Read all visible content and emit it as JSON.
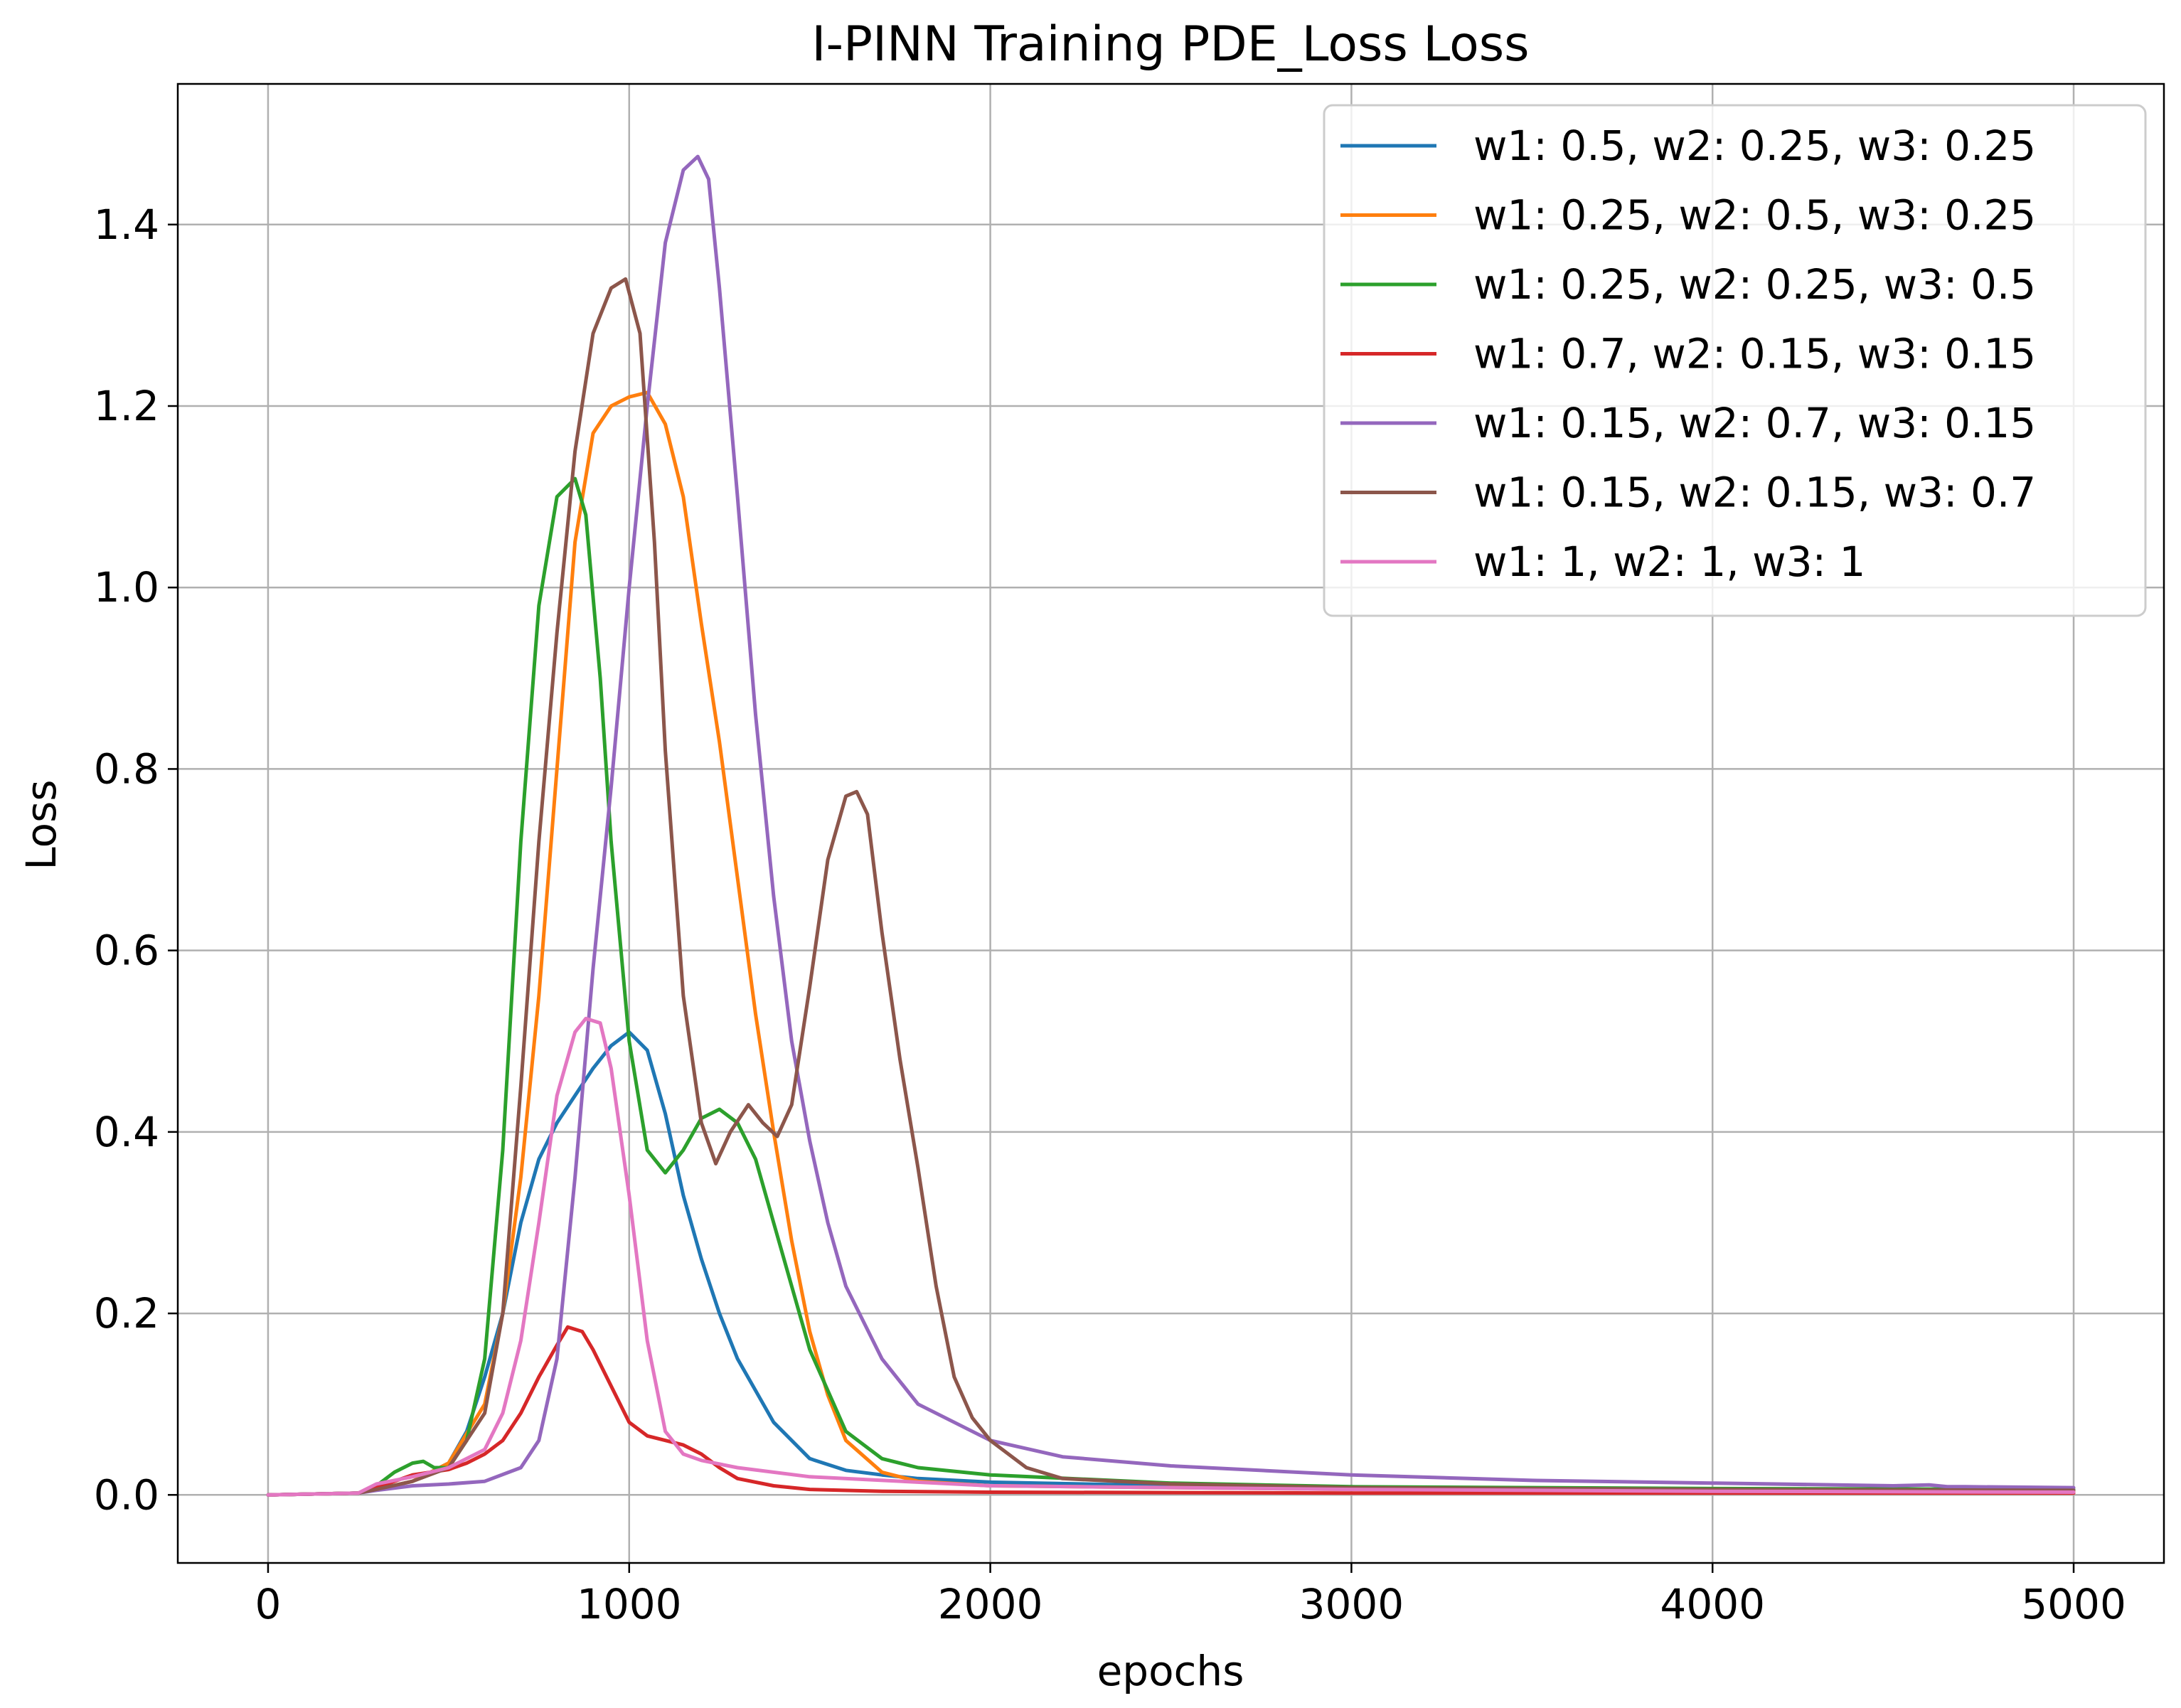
{
  "chart_data": {
    "type": "line",
    "title": "I-PINN Training PDE_Loss Loss",
    "xlabel": "epochs",
    "ylabel": "Loss",
    "xlim": [
      -250,
      5250
    ],
    "ylim": [
      -0.075,
      1.555
    ],
    "xticks": [
      0,
      1000,
      2000,
      3000,
      4000,
      5000
    ],
    "xtick_labels": [
      "0",
      "1000",
      "2000",
      "3000",
      "4000",
      "5000"
    ],
    "yticks": [
      0.0,
      0.2,
      0.4,
      0.6,
      0.8,
      1.0,
      1.2,
      1.4
    ],
    "ytick_labels": [
      "0.0",
      "0.2",
      "0.4",
      "0.6",
      "0.8",
      "1.0",
      "1.2",
      "1.4"
    ],
    "grid": true,
    "legend_position": "top-right",
    "series": [
      {
        "name": "w1: 0.5, w2: 0.25, w3: 0.25",
        "color": "#1f77b4",
        "x": [
          0,
          250,
          300,
          400,
          500,
          550,
          600,
          650,
          700,
          750,
          800,
          850,
          900,
          950,
          1000,
          1050,
          1100,
          1150,
          1200,
          1250,
          1300,
          1400,
          1500,
          1600,
          1700,
          1800,
          2000,
          2500,
          3000,
          4000,
          5000
        ],
        "y": [
          0.0,
          0.002,
          0.006,
          0.015,
          0.035,
          0.07,
          0.13,
          0.2,
          0.3,
          0.37,
          0.41,
          0.44,
          0.47,
          0.495,
          0.51,
          0.49,
          0.42,
          0.33,
          0.26,
          0.2,
          0.15,
          0.08,
          0.04,
          0.027,
          0.022,
          0.018,
          0.014,
          0.01,
          0.008,
          0.006,
          0.005
        ]
      },
      {
        "name": "w1: 0.25, w2: 0.5, w3: 0.25",
        "color": "#ff7f0e",
        "x": [
          0,
          250,
          300,
          400,
          500,
          600,
          650,
          700,
          750,
          800,
          850,
          900,
          950,
          1000,
          1050,
          1100,
          1150,
          1200,
          1250,
          1300,
          1350,
          1400,
          1450,
          1500,
          1550,
          1600,
          1700,
          1800,
          2000,
          2500,
          3000,
          4000,
          5000
        ],
        "y": [
          0.0,
          0.002,
          0.006,
          0.015,
          0.035,
          0.1,
          0.2,
          0.35,
          0.55,
          0.8,
          1.05,
          1.17,
          1.2,
          1.21,
          1.215,
          1.18,
          1.1,
          0.96,
          0.83,
          0.68,
          0.53,
          0.4,
          0.28,
          0.18,
          0.11,
          0.06,
          0.025,
          0.015,
          0.01,
          0.008,
          0.006,
          0.005,
          0.004
        ]
      },
      {
        "name": "w1: 0.25, w2: 0.25, w3: 0.5",
        "color": "#2ca02c",
        "x": [
          0,
          250,
          300,
          350,
          400,
          430,
          460,
          500,
          550,
          600,
          650,
          700,
          750,
          800,
          850,
          880,
          920,
          950,
          1000,
          1050,
          1100,
          1150,
          1200,
          1250,
          1300,
          1350,
          1400,
          1500,
          1600,
          1700,
          1800,
          2000,
          2500,
          3000,
          4000,
          5000
        ],
        "y": [
          0.0,
          0.002,
          0.01,
          0.025,
          0.035,
          0.037,
          0.03,
          0.03,
          0.06,
          0.15,
          0.38,
          0.72,
          0.98,
          1.1,
          1.12,
          1.08,
          0.9,
          0.72,
          0.5,
          0.38,
          0.355,
          0.38,
          0.415,
          0.425,
          0.41,
          0.37,
          0.3,
          0.16,
          0.07,
          0.04,
          0.03,
          0.022,
          0.013,
          0.009,
          0.007,
          0.006
        ]
      },
      {
        "name": "w1: 0.7, w2: 0.15, w3: 0.15",
        "color": "#d62728",
        "x": [
          0,
          250,
          300,
          400,
          500,
          550,
          600,
          650,
          700,
          750,
          800,
          830,
          870,
          900,
          950,
          1000,
          1050,
          1100,
          1150,
          1200,
          1250,
          1300,
          1400,
          1500,
          1700,
          2000,
          3000,
          4000,
          5000
        ],
        "y": [
          0.0,
          0.002,
          0.008,
          0.022,
          0.028,
          0.035,
          0.045,
          0.06,
          0.09,
          0.13,
          0.165,
          0.185,
          0.18,
          0.16,
          0.12,
          0.08,
          0.065,
          0.06,
          0.055,
          0.045,
          0.03,
          0.018,
          0.01,
          0.006,
          0.004,
          0.003,
          0.002,
          0.002,
          0.002
        ]
      },
      {
        "name": "w1: 0.15, w2: 0.7, w3: 0.15",
        "color": "#9467bd",
        "x": [
          0,
          250,
          300,
          400,
          500,
          600,
          700,
          750,
          800,
          850,
          900,
          950,
          1000,
          1050,
          1100,
          1150,
          1190,
          1220,
          1250,
          1300,
          1350,
          1400,
          1450,
          1500,
          1550,
          1600,
          1700,
          1800,
          1900,
          2000,
          2200,
          2500,
          3000,
          3500,
          4000,
          4500,
          4600,
          4650,
          4700,
          5000
        ],
        "y": [
          0.0,
          0.002,
          0.005,
          0.01,
          0.012,
          0.015,
          0.03,
          0.06,
          0.15,
          0.35,
          0.58,
          0.78,
          1.0,
          1.2,
          1.38,
          1.46,
          1.475,
          1.45,
          1.33,
          1.1,
          0.86,
          0.66,
          0.5,
          0.39,
          0.3,
          0.23,
          0.15,
          0.1,
          0.08,
          0.06,
          0.042,
          0.032,
          0.022,
          0.016,
          0.013,
          0.01,
          0.011,
          0.009,
          0.009,
          0.008
        ]
      },
      {
        "name": "w1: 0.15, w2: 0.15, w3: 0.7",
        "color": "#8c564b",
        "x": [
          0,
          250,
          300,
          400,
          500,
          600,
          650,
          700,
          750,
          800,
          850,
          900,
          950,
          990,
          1030,
          1070,
          1100,
          1150,
          1200,
          1240,
          1280,
          1330,
          1370,
          1410,
          1450,
          1500,
          1550,
          1600,
          1630,
          1660,
          1700,
          1750,
          1800,
          1850,
          1900,
          1950,
          2000,
          2100,
          2200,
          2500,
          3000,
          4000,
          5000
        ],
        "y": [
          0.0,
          0.002,
          0.006,
          0.015,
          0.03,
          0.09,
          0.2,
          0.45,
          0.72,
          0.95,
          1.15,
          1.28,
          1.33,
          1.34,
          1.28,
          1.05,
          0.82,
          0.55,
          0.41,
          0.365,
          0.4,
          0.43,
          0.41,
          0.395,
          0.43,
          0.56,
          0.7,
          0.77,
          0.775,
          0.75,
          0.62,
          0.48,
          0.36,
          0.23,
          0.13,
          0.085,
          0.06,
          0.03,
          0.018,
          0.012,
          0.008,
          0.006,
          0.005
        ]
      },
      {
        "name": "w1: 1, w2: 1, w3: 1",
        "color": "#e377c2",
        "x": [
          0,
          250,
          300,
          400,
          500,
          600,
          650,
          700,
          750,
          800,
          850,
          880,
          920,
          950,
          1000,
          1050,
          1100,
          1150,
          1200,
          1300,
          1500,
          2000,
          3000,
          4000,
          5000
        ],
        "y": [
          0.0,
          0.002,
          0.012,
          0.02,
          0.03,
          0.05,
          0.09,
          0.17,
          0.3,
          0.44,
          0.51,
          0.525,
          0.52,
          0.47,
          0.33,
          0.17,
          0.07,
          0.045,
          0.038,
          0.03,
          0.02,
          0.01,
          0.006,
          0.004,
          0.003
        ]
      }
    ]
  }
}
